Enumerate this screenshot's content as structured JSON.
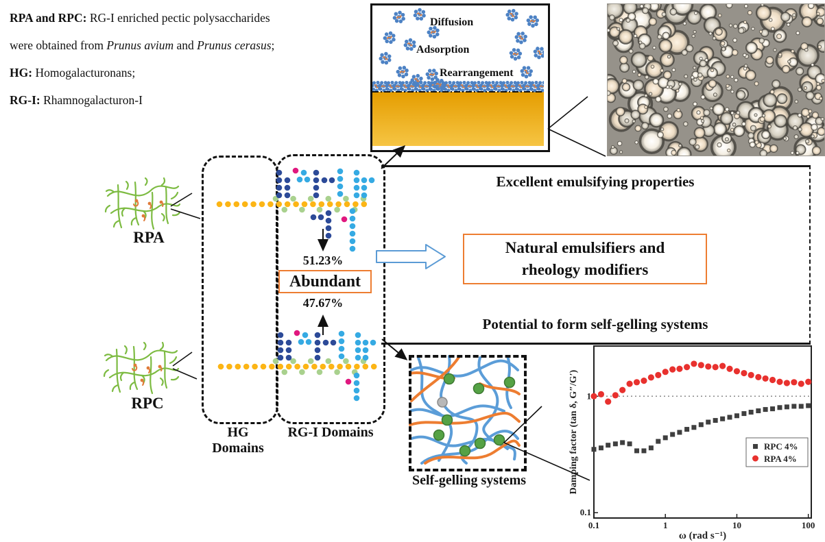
{
  "intro": {
    "l1_b": "RPA and RPC:",
    "l1_r": " RG-I enriched pectic polysaccharides",
    "l2_r1": "were obtained from ",
    "l2_i1": "Prunus avium",
    "l2_r2": " and ",
    "l2_i2": "Prunus cerasus",
    "l2_r3": ";",
    "l3_b": "HG:",
    "l3_r": " Homogalacturonans;",
    "l4_b": "RG-I:",
    "l4_r": " Rhamnogalacturon-I"
  },
  "emulsion_panel": {
    "diffusion": "Diffusion",
    "adsorption": "Adsorption",
    "rearrangement": "Rearrangement"
  },
  "molecules": {
    "rpa_label": "RPA",
    "rpc_label": "RPC"
  },
  "domains": {
    "hg_label": "HG Domains",
    "rgi_label": "RG-I Domains",
    "pct_top": "51.23%",
    "abundant_label": "Abundant",
    "pct_bottom": "47.67%"
  },
  "outcomes": {
    "emulsifying": "Excellent emulsifying properties",
    "center_line1": "Natural emulsifiers and",
    "center_line2": "rheology modifiers",
    "gelling": "Potential to form self-gelling systems"
  },
  "gel_panel": {
    "label": "Self-gelling systems"
  },
  "colors": {
    "navy": "#2c4a98",
    "sky": "#35aae3",
    "light_green": "#a9d18e",
    "yellow": "#fcb515",
    "magenta": "#e0187f",
    "orange_accent": "#ed7d31",
    "blue_arrow": "#5b9bd5",
    "gel_blue": "#5b9dd8",
    "gel_orange": "#ed7d31",
    "node_green": "#55a245",
    "gold_top": "#e59d00",
    "gold_bottom": "#f6c544",
    "structure_green": "#7dbb42",
    "rpc_marker": "#3f3f3f",
    "rpa_marker": "#e8312e"
  },
  "chart_data": {
    "type": "scatter",
    "title": "",
    "xlabel": "ω (rad s⁻¹)",
    "ylabel": "Damping factor (tan δ, G″/G′)",
    "x_scale": "log",
    "y_scale": "log",
    "xlim": [
      0.1,
      110
    ],
    "ylim": [
      0.09,
      2.7
    ],
    "x_ticks": [
      0.1,
      1,
      10,
      100
    ],
    "x_tick_labels": [
      "0.1",
      "1",
      "10",
      "100"
    ],
    "y_ticks": [
      0.1,
      1
    ],
    "y_tick_labels": [
      "0.1",
      "1"
    ],
    "reference_line_y": 1,
    "grid": false,
    "legend_position": "right-middle",
    "x": [
      0.1,
      0.126,
      0.158,
      0.2,
      0.251,
      0.316,
      0.398,
      0.501,
      0.631,
      0.794,
      1.0,
      1.26,
      1.58,
      2.0,
      2.51,
      3.16,
      3.98,
      5.01,
      6.31,
      7.94,
      10.0,
      12.6,
      15.8,
      20.0,
      25.1,
      31.6,
      39.8,
      50.1,
      63.1,
      79.4,
      100.0
    ],
    "series": [
      {
        "name": "RPC 4%",
        "marker": "square",
        "color": "#3f3f3f",
        "y": [
          0.35,
          0.36,
          0.38,
          0.39,
          0.4,
          0.39,
          0.34,
          0.34,
          0.36,
          0.41,
          0.44,
          0.47,
          0.49,
          0.52,
          0.54,
          0.57,
          0.6,
          0.62,
          0.64,
          0.66,
          0.68,
          0.71,
          0.73,
          0.75,
          0.77,
          0.78,
          0.8,
          0.81,
          0.82,
          0.82,
          0.83
        ]
      },
      {
        "name": "RPA 4%",
        "marker": "circle",
        "color": "#e8312e",
        "y": [
          1.0,
          1.04,
          0.9,
          1.02,
          1.13,
          1.28,
          1.32,
          1.36,
          1.45,
          1.52,
          1.62,
          1.7,
          1.72,
          1.78,
          1.9,
          1.85,
          1.8,
          1.78,
          1.82,
          1.72,
          1.64,
          1.58,
          1.52,
          1.46,
          1.42,
          1.38,
          1.33,
          1.3,
          1.32,
          1.28,
          1.33
        ]
      }
    ]
  }
}
